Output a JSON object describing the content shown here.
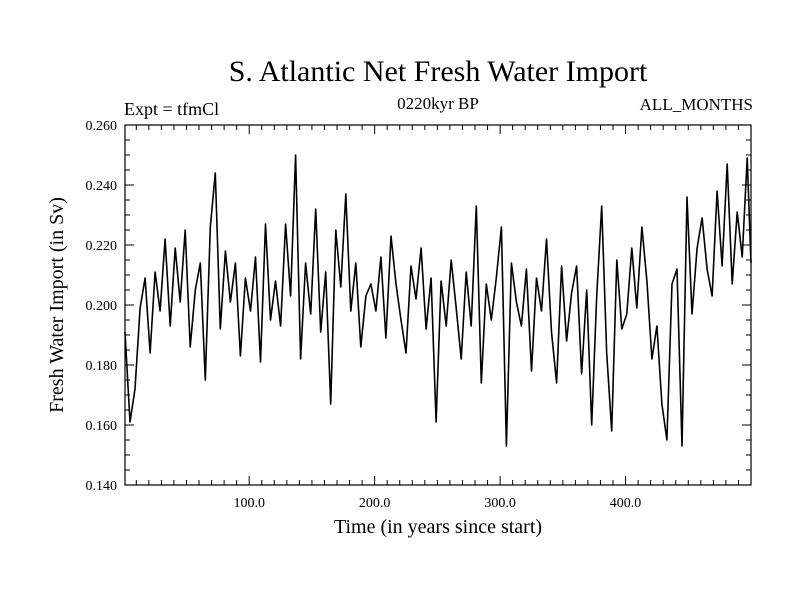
{
  "header": {
    "title": "S. Atlantic Net Fresh Water Import",
    "subtitle": "0220kyr BP",
    "experiment": "Expt = tfmCl",
    "months": "ALL_MONTHS"
  },
  "chart_data": {
    "type": "line",
    "title": "S. Atlantic Net Fresh Water Import",
    "subtitle": "0220kyr BP",
    "xlabel": "Time (in years since start)",
    "ylabel": "Fresh Water Import (in Sv)",
    "xlim": [
      1,
      500
    ],
    "ylim": [
      0.14,
      0.26
    ],
    "x_ticks": [
      100,
      200,
      300,
      400
    ],
    "x_tick_labels": [
      "100.0",
      "200.0",
      "300.0",
      "400.0"
    ],
    "y_ticks": [
      0.14,
      0.16,
      0.18,
      0.2,
      0.22,
      0.24,
      0.26
    ],
    "y_tick_labels": [
      "0.140",
      "0.160",
      "0.180",
      "0.200",
      "0.220",
      "0.240",
      "0.260"
    ],
    "grid": false,
    "line_color": "#000000",
    "series": [
      {
        "x": [
          1,
          5,
          9,
          13,
          17,
          21,
          25,
          29,
          33,
          37,
          41,
          45,
          49,
          53,
          57,
          61,
          65,
          69,
          73,
          77,
          81,
          85,
          89,
          93,
          97,
          101,
          105,
          109,
          113,
          117,
          121,
          125,
          129,
          133,
          137,
          141,
          145,
          149,
          153,
          157,
          161,
          165,
          169,
          173,
          177,
          181,
          185,
          189,
          193,
          197,
          201,
          205,
          209,
          213,
          217,
          221,
          225,
          229,
          233,
          237,
          241,
          245,
          249,
          253,
          257,
          261,
          265,
          269,
          273,
          277,
          281,
          285,
          289,
          293,
          297,
          301,
          305,
          309,
          313,
          317,
          321,
          325,
          329,
          333,
          337,
          341,
          345,
          349,
          353,
          357,
          361,
          365,
          369,
          373,
          377,
          381,
          385,
          389,
          393,
          397,
          401,
          405,
          409,
          413,
          417,
          421,
          425,
          429,
          433,
          437,
          441,
          445,
          449,
          453,
          457,
          461,
          465,
          469,
          473,
          477,
          481,
          485,
          489,
          493,
          497,
          500
        ],
        "values": [
          0.191,
          0.161,
          0.172,
          0.199,
          0.209,
          0.184,
          0.211,
          0.198,
          0.222,
          0.193,
          0.219,
          0.201,
          0.225,
          0.186,
          0.205,
          0.214,
          0.175,
          0.226,
          0.244,
          0.192,
          0.218,
          0.201,
          0.214,
          0.183,
          0.209,
          0.198,
          0.216,
          0.181,
          0.227,
          0.195,
          0.208,
          0.193,
          0.227,
          0.203,
          0.25,
          0.182,
          0.214,
          0.197,
          0.232,
          0.191,
          0.211,
          0.167,
          0.225,
          0.206,
          0.237,
          0.198,
          0.214,
          0.186,
          0.203,
          0.207,
          0.198,
          0.216,
          0.189,
          0.223,
          0.207,
          0.195,
          0.184,
          0.213,
          0.202,
          0.219,
          0.192,
          0.209,
          0.161,
          0.208,
          0.193,
          0.215,
          0.199,
          0.182,
          0.211,
          0.193,
          0.233,
          0.174,
          0.207,
          0.195,
          0.209,
          0.226,
          0.153,
          0.214,
          0.201,
          0.193,
          0.212,
          0.178,
          0.209,
          0.198,
          0.222,
          0.191,
          0.174,
          0.213,
          0.188,
          0.204,
          0.213,
          0.177,
          0.205,
          0.16,
          0.203,
          0.233,
          0.184,
          0.158,
          0.215,
          0.192,
          0.197,
          0.219,
          0.199,
          0.226,
          0.208,
          0.182,
          0.193,
          0.167,
          0.155,
          0.207,
          0.212,
          0.153,
          0.236,
          0.197,
          0.219,
          0.229,
          0.212,
          0.203,
          0.238,
          0.213,
          0.247,
          0.207,
          0.231,
          0.216,
          0.249,
          0.214
        ]
      }
    ]
  }
}
